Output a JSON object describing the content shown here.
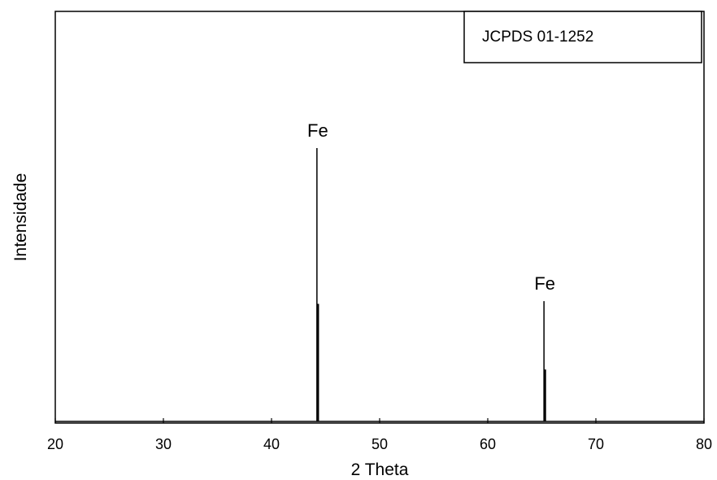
{
  "chart_data": {
    "type": "line",
    "title": "",
    "xlabel": "2 Theta",
    "ylabel": "Intensidade",
    "xlim": [
      20,
      80
    ],
    "ylim": [
      0,
      100
    ],
    "x_ticks": [
      "20",
      "30",
      "40",
      "50",
      "60",
      "70",
      "80"
    ],
    "grid": false,
    "legend": {
      "text": "JCPDS 01-1252",
      "position": "top-right"
    },
    "series": [
      {
        "peaks": [
          {
            "x": 44.2,
            "y": 100
          },
          {
            "x": 44.3,
            "y": 43
          },
          {
            "x": 65.2,
            "y": 44
          },
          {
            "x": 65.3,
            "y": 19
          }
        ]
      }
    ],
    "annotations": [
      {
        "text": "Fe",
        "x": 44.2
      },
      {
        "text": "Fe",
        "x": 65.2
      }
    ],
    "colors": {
      "line": "#000000",
      "axis": "#000000",
      "background": "#ffffff"
    }
  }
}
